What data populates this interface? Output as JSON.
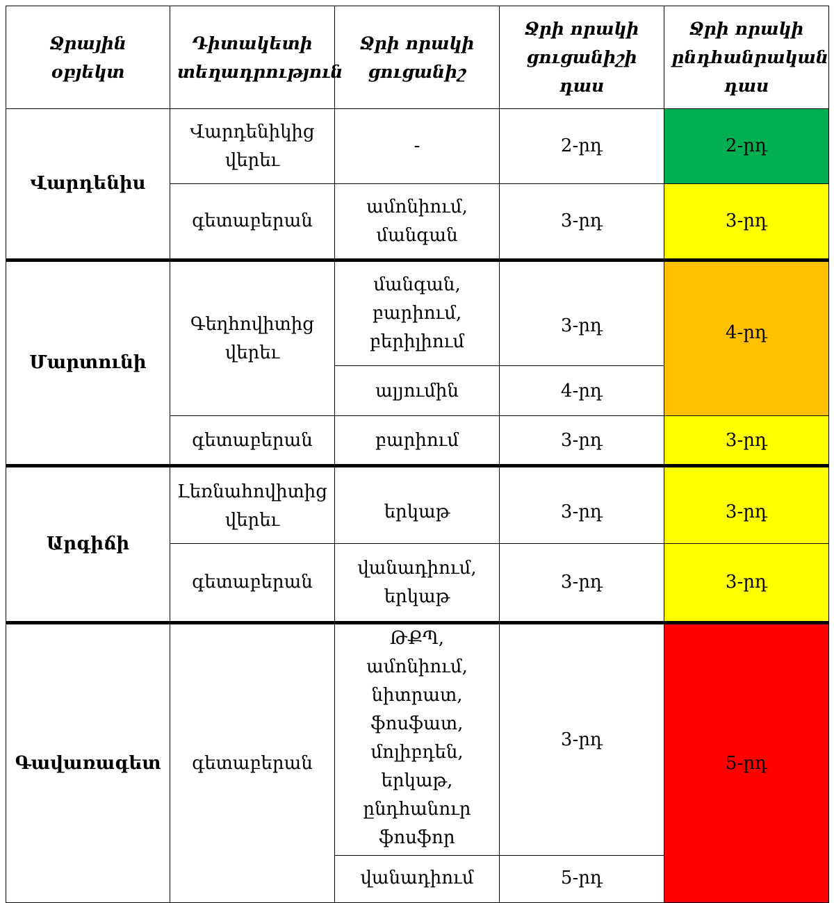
{
  "headers": {
    "object": "Ջրային օբյեկտ",
    "location": "Դիտակետի տեղադրություն",
    "indicator": "Ջրի որակի ցուցանիշ",
    "indicator_class": "Ջրի որակի ցուցանիշի դաս",
    "overall_class": "Ջրի որակի ընդհանրական դաս"
  },
  "rows": {
    "vardenis": {
      "name": "Վարդենիս",
      "loc1": "Վարդենիկից\nվերեւ",
      "ind1": "-",
      "cls1": "2-րդ",
      "overall1": "2-րդ",
      "loc2": "գետաբերան",
      "ind2": "ամոնիում,\nմանգան",
      "cls2": "3-րդ",
      "overall2": "3-րդ"
    },
    "martuni": {
      "name": "Մարտունի",
      "loc1": "Գեղհովիտից\nվերեւ",
      "ind1": "մանգան,\nբարիում,\nբերիլիում",
      "cls1": "3-րդ",
      "ind2": "ալյումին",
      "cls2": "4-րդ",
      "overall1": "4-րդ",
      "loc3": "գետաբերան",
      "ind3": "բարիում",
      "cls3": "3-րդ",
      "overall3": "3-րդ"
    },
    "argichi": {
      "name": "Արգիճի",
      "loc1": "Լեռնահովիտից\nվերեւ",
      "ind1": "երկաթ",
      "cls1": "3-րդ",
      "overall1": "3-րդ",
      "loc2": "գետաբերան",
      "ind2": "վանադիում,\nերկաթ",
      "cls2": "3-րդ",
      "overall2": "3-րդ"
    },
    "gavaraget": {
      "name": "Գավառագետ",
      "loc1": "գետաբերան",
      "ind1": "ԹՔՊ, ամոնիում,\nնիտրատ,\nֆոսֆատ,\nմոլիբդեն,\nերկաթ,\nընդհանուր\nֆոսֆոր",
      "cls1": "3-րդ",
      "ind2": "վանադիում",
      "cls2": "5-րդ",
      "overall1": "5-րդ"
    }
  },
  "colors": {
    "class2": "#00b050",
    "class3": "#ffff00",
    "class4": "#ffc000",
    "class5": "#ff0000"
  }
}
